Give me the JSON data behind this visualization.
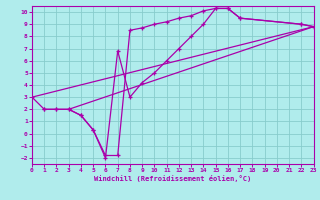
{
  "xlabel": "Windchill (Refroidissement éolien,°C)",
  "bg_color": "#b0ecec",
  "grid_color": "#88cccc",
  "line_color": "#aa00aa",
  "xlim": [
    0,
    23
  ],
  "ylim": [
    -2.5,
    10.5
  ],
  "xticks": [
    0,
    1,
    2,
    3,
    4,
    5,
    6,
    7,
    8,
    9,
    10,
    11,
    12,
    13,
    14,
    15,
    16,
    17,
    18,
    19,
    20,
    21,
    22,
    23
  ],
  "yticks": [
    -2,
    -1,
    0,
    1,
    2,
    3,
    4,
    5,
    6,
    7,
    8,
    9,
    10
  ],
  "line1_x": [
    0,
    1,
    2,
    3,
    4,
    5,
    6,
    7,
    8,
    9,
    10,
    11,
    12,
    13,
    14,
    15,
    16,
    17,
    22,
    23
  ],
  "line1_y": [
    3.0,
    2.0,
    2.0,
    2.0,
    1.5,
    0.3,
    -1.8,
    -1.8,
    8.5,
    8.7,
    9.0,
    9.2,
    9.5,
    9.7,
    10.1,
    10.3,
    10.3,
    9.5,
    9.0,
    8.8
  ],
  "line2_x": [
    1,
    2,
    3,
    4,
    5,
    6,
    7,
    8,
    9,
    10,
    11,
    12,
    13,
    14,
    15,
    16,
    17,
    22,
    23
  ],
  "line2_y": [
    2.0,
    2.0,
    2.0,
    1.5,
    0.3,
    -2.0,
    6.8,
    3.0,
    4.2,
    5.0,
    6.0,
    7.0,
    8.0,
    9.0,
    10.3,
    10.3,
    9.5,
    9.0,
    8.8
  ],
  "line3_x": [
    0,
    23
  ],
  "line3_y": [
    3.0,
    8.8
  ],
  "line4_x": [
    3,
    23
  ],
  "line4_y": [
    2.0,
    8.8
  ]
}
